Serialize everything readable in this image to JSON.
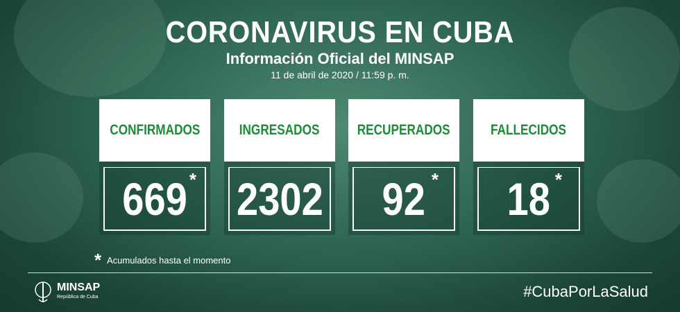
{
  "header": {
    "title": "CORONAVIRUS EN CUBA",
    "subtitle": "Información Oficial del MINSAP",
    "date": "11 de abril de 2020 / 11:59 p. m."
  },
  "cards": [
    {
      "label": "CONFIRMADOS",
      "value": "669",
      "marker": "*"
    },
    {
      "label": "INGRESADOS",
      "value": "2302"
    },
    {
      "label": "RECUPERADOS",
      "value": "92",
      "marker": "*"
    },
    {
      "label": "FALLECIDOS",
      "value": "18",
      "marker": "*"
    }
  ],
  "footnote": {
    "marker": "*",
    "text": "Acumulados hasta el momento"
  },
  "footer": {
    "logo": "MINSAP",
    "logo_subtitle": "República de Cuba",
    "hashtag": "#CubaPorLaSalud"
  }
}
